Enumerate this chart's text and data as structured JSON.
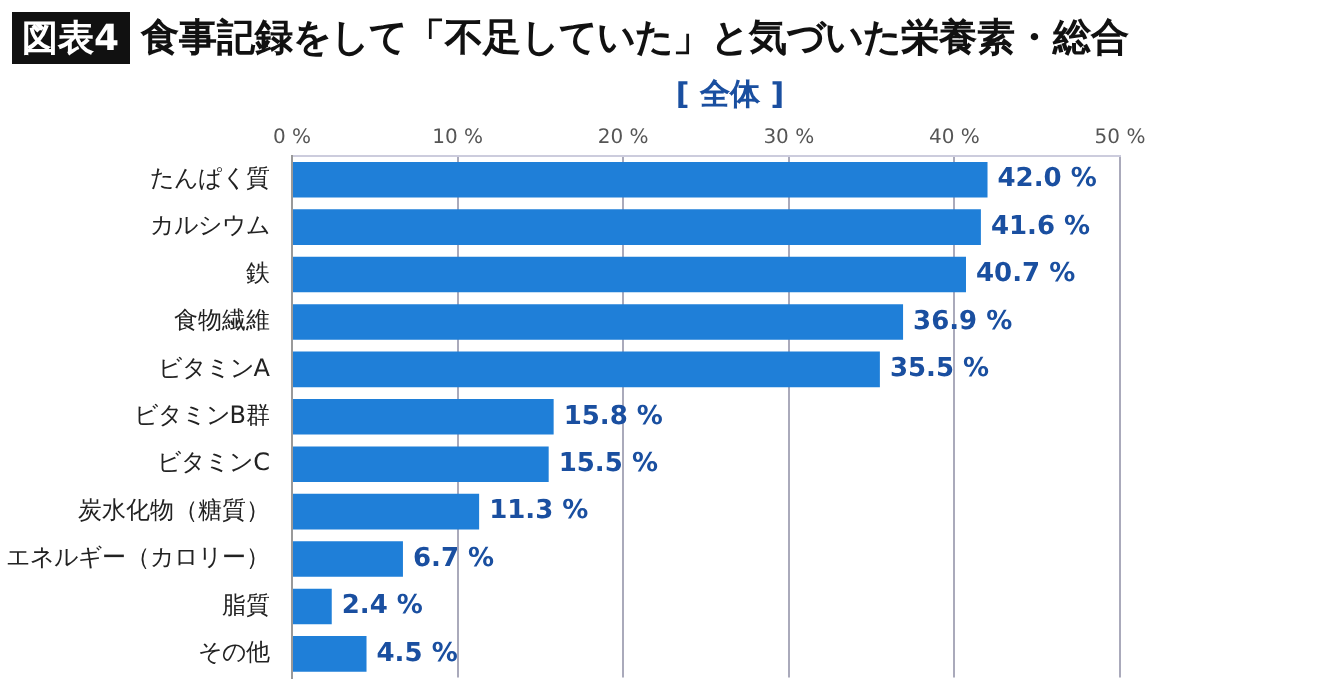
{
  "chart_data": {
    "type": "bar",
    "orientation": "horizontal",
    "title": "食事記録をして「不足していた」と気づいた栄養素・総合",
    "subtitle": "[ 全体 ]",
    "annotations": [
      "図表4"
    ],
    "categories": [
      "たんぱく質",
      "カルシウム",
      "鉄",
      "食物繊維",
      "ビタミンA",
      "ビタミンB群",
      "ビタミンC",
      "炭水化物（糖質）",
      "エネルギー（カロリー）",
      "脂質",
      "その他"
    ],
    "values": [
      42.0,
      41.6,
      40.7,
      36.9,
      35.5,
      15.8,
      15.5,
      11.3,
      6.7,
      2.4,
      4.5
    ],
    "value_labels": [
      "42.0 %",
      "41.6 %",
      "40.7 %",
      "36.9 %",
      "35.5 %",
      "15.8 %",
      "15.5 %",
      "11.3 %",
      "6.7 %",
      "2.4 %",
      "4.5 %"
    ],
    "color": "#1f7fd8",
    "xlim": [
      0,
      50
    ],
    "xticks": [
      {
        "value": 0,
        "label": "0 %"
      },
      {
        "value": 10,
        "label": "10 %"
      },
      {
        "value": 20,
        "label": "20 %"
      },
      {
        "value": 30,
        "label": "30 %"
      },
      {
        "value": 40,
        "label": "40 %"
      },
      {
        "value": 50,
        "label": "50 %"
      }
    ],
    "grid": "x",
    "legend": false
  }
}
